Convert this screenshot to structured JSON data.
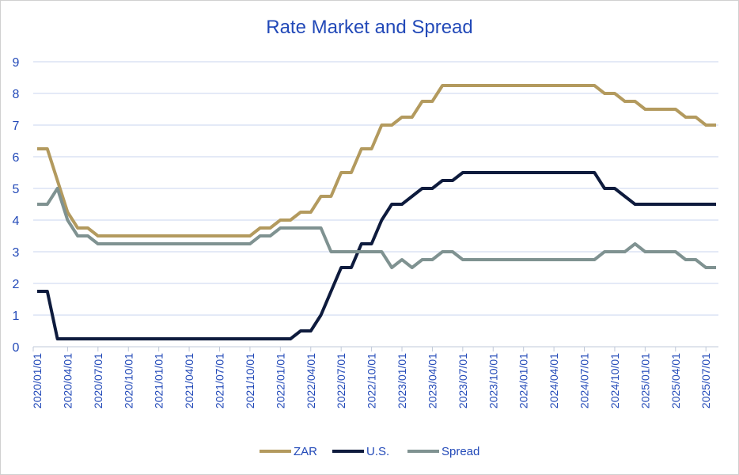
{
  "chart_data": {
    "type": "line",
    "title": "Rate Market and Spread",
    "xlabel": "",
    "ylabel": "",
    "ylim": [
      0,
      9
    ],
    "y_ticks": [
      "0",
      "1",
      "2",
      "3",
      "4",
      "5",
      "6",
      "7",
      "8",
      "9"
    ],
    "x_ticks": [
      "2020/01/01",
      "2020/04/01",
      "2020/07/01",
      "2020/10/01",
      "2021/01/01",
      "2021/04/01",
      "2021/07/01",
      "2021/10/01",
      "2022/01/01",
      "2022/04/01",
      "2022/07/01",
      "2022/10/01",
      "2023/01/01",
      "2023/04/01",
      "2023/07/01",
      "2023/10/01",
      "2024/01/01",
      "2024/04/01",
      "2024/07/01",
      "2024/10/01",
      "2025/01/01",
      "2025/04/01",
      "2025/07/01"
    ],
    "grid": true,
    "legend_position": "bottom",
    "series": [
      {
        "name": "ZAR",
        "color": "#B39A5E",
        "values": [
          6.25,
          6.25,
          5.25,
          4.25,
          3.75,
          3.75,
          3.5,
          3.5,
          3.5,
          3.5,
          3.5,
          3.5,
          3.5,
          3.5,
          3.5,
          3.5,
          3.5,
          3.5,
          3.5,
          3.5,
          3.5,
          3.5,
          3.75,
          3.75,
          4.0,
          4.0,
          4.25,
          4.25,
          4.75,
          4.75,
          5.5,
          5.5,
          6.25,
          6.25,
          7.0,
          7.0,
          7.25,
          7.25,
          7.75,
          7.75,
          8.25,
          8.25,
          8.25,
          8.25,
          8.25,
          8.25,
          8.25,
          8.25,
          8.25,
          8.25,
          8.25,
          8.25,
          8.25,
          8.25,
          8.25,
          8.25,
          8.0,
          8.0,
          7.75,
          7.75,
          7.5,
          7.5,
          7.5,
          7.5,
          7.25,
          7.25,
          7.0,
          7.0
        ]
      },
      {
        "name": "U.S.",
        "color": "#0E1B3D",
        "values": [
          1.75,
          1.75,
          0.25,
          0.25,
          0.25,
          0.25,
          0.25,
          0.25,
          0.25,
          0.25,
          0.25,
          0.25,
          0.25,
          0.25,
          0.25,
          0.25,
          0.25,
          0.25,
          0.25,
          0.25,
          0.25,
          0.25,
          0.25,
          0.25,
          0.25,
          0.25,
          0.5,
          0.5,
          1.0,
          1.75,
          2.5,
          2.5,
          3.25,
          3.25,
          4.0,
          4.5,
          4.5,
          4.75,
          5.0,
          5.0,
          5.25,
          5.25,
          5.5,
          5.5,
          5.5,
          5.5,
          5.5,
          5.5,
          5.5,
          5.5,
          5.5,
          5.5,
          5.5,
          5.5,
          5.5,
          5.5,
          5.0,
          5.0,
          4.75,
          4.5,
          4.5,
          4.5,
          4.5,
          4.5,
          4.5,
          4.5,
          4.5,
          4.5
        ]
      },
      {
        "name": "Spread",
        "color": "#7F9291",
        "values": [
          4.5,
          4.5,
          5.0,
          4.0,
          3.5,
          3.5,
          3.25,
          3.25,
          3.25,
          3.25,
          3.25,
          3.25,
          3.25,
          3.25,
          3.25,
          3.25,
          3.25,
          3.25,
          3.25,
          3.25,
          3.25,
          3.25,
          3.5,
          3.5,
          3.75,
          3.75,
          3.75,
          3.75,
          3.75,
          3.0,
          3.0,
          3.0,
          3.0,
          3.0,
          3.0,
          2.5,
          2.75,
          2.5,
          2.75,
          2.75,
          3.0,
          3.0,
          2.75,
          2.75,
          2.75,
          2.75,
          2.75,
          2.75,
          2.75,
          2.75,
          2.75,
          2.75,
          2.75,
          2.75,
          2.75,
          2.75,
          3.0,
          3.0,
          3.0,
          3.25,
          3.0,
          3.0,
          3.0,
          3.0,
          2.75,
          2.75,
          2.5,
          2.5
        ]
      }
    ]
  },
  "colors": {
    "title": "#2249B8",
    "tick": "#2249B8",
    "grid": "#C9D6EF",
    "axis": "#BFC8D8"
  }
}
